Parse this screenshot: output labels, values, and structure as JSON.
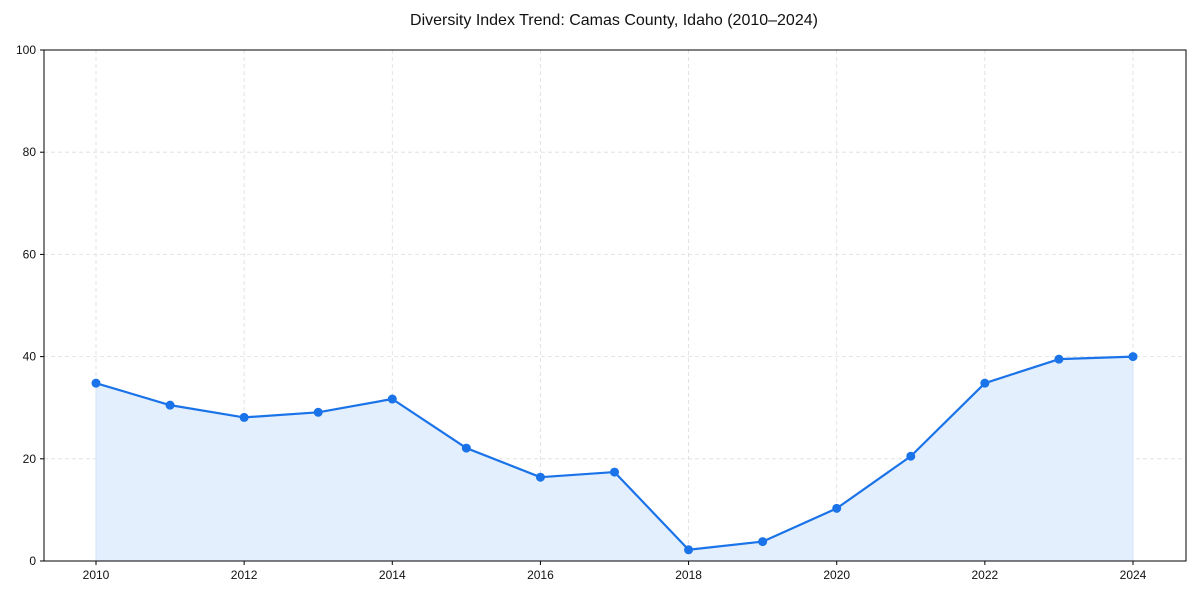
{
  "chart_data": {
    "type": "line",
    "title": "Diversity Index Trend: Camas County, Idaho (2010–2024)",
    "xlabel": "",
    "ylabel": "",
    "x": [
      2010,
      2011,
      2012,
      2013,
      2014,
      2015,
      2016,
      2017,
      2018,
      2019,
      2020,
      2021,
      2022,
      2023,
      2024
    ],
    "series": [
      {
        "name": "Diversity Index",
        "values": [
          34.8,
          30.5,
          28.1,
          29.1,
          31.7,
          22.1,
          16.4,
          17.4,
          2.2,
          3.8,
          10.3,
          20.5,
          34.8,
          39.5,
          40.0
        ],
        "color": "#1a73e8",
        "fill": "#e3effd",
        "markers": true
      }
    ],
    "xticks": [
      "2010",
      "2012",
      "2014",
      "2016",
      "2018",
      "2020",
      "2022",
      "2024"
    ],
    "yticks": [
      "0",
      "20",
      "40",
      "60",
      "80",
      "100"
    ],
    "xlim": [
      2009.3,
      2024.7
    ],
    "ylim": [
      0,
      100
    ],
    "grid": true,
    "legend": null
  }
}
